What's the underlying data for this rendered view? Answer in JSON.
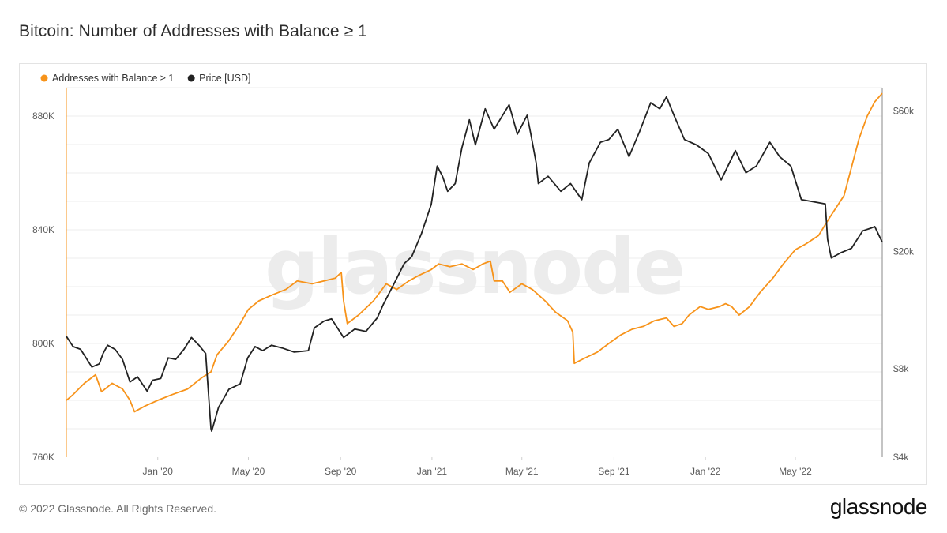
{
  "title": "Bitcoin: Number of Addresses with Balance ≥ 1",
  "footer": {
    "copyright": "© 2022 Glassnode. All Rights Reserved.",
    "logo": "glassnode"
  },
  "watermark": "glassnode",
  "colors": {
    "addresses": "#f7931a",
    "price": "#222222",
    "grid": "#ececec",
    "axis": "#cfcfcf"
  },
  "chart_data": {
    "type": "line",
    "legend_position": "top-left",
    "x_tick_labels": [
      "Jan '20",
      "May '20",
      "Sep '20",
      "Jan '21",
      "May '21",
      "Sep '21",
      "Jan '22",
      "May '22"
    ],
    "x_ticks": [
      "2020-01-01",
      "2020-05-01",
      "2020-09-01",
      "2021-01-01",
      "2021-05-01",
      "2021-09-01",
      "2022-01-01",
      "2022-05-01"
    ],
    "x_range": [
      "2019-09-01",
      "2022-08-25"
    ],
    "y_left": {
      "range": [
        760000,
        890000
      ],
      "ticks": [
        760000,
        800000,
        840000,
        880000
      ],
      "tick_labels": [
        "760K",
        "800K",
        "840K",
        "880K"
      ]
    },
    "y_right": {
      "scale": "log",
      "range": [
        4000,
        72000
      ],
      "ticks": [
        4000,
        8000,
        20000,
        60000
      ],
      "tick_labels": [
        "$4k",
        "$8k",
        "$20k",
        "$60k"
      ]
    },
    "grid": true,
    "series": [
      {
        "name": "Addresses with Balance ≥ 1",
        "axis": "left",
        "color": "#f7931a",
        "points": [
          [
            "2019-09-01",
            780000
          ],
          [
            "2019-09-10",
            782000
          ],
          [
            "2019-09-25",
            786000
          ],
          [
            "2019-10-10",
            789000
          ],
          [
            "2019-10-18",
            783000
          ],
          [
            "2019-11-01",
            786000
          ],
          [
            "2019-11-15",
            784000
          ],
          [
            "2019-11-25",
            780000
          ],
          [
            "2019-12-01",
            776000
          ],
          [
            "2019-12-15",
            778000
          ],
          [
            "2020-01-01",
            780000
          ],
          [
            "2020-01-20",
            782000
          ],
          [
            "2020-02-10",
            784000
          ],
          [
            "2020-02-29",
            788000
          ],
          [
            "2020-03-12",
            790000
          ],
          [
            "2020-03-20",
            796000
          ],
          [
            "2020-04-05",
            801000
          ],
          [
            "2020-04-20",
            807000
          ],
          [
            "2020-05-01",
            812000
          ],
          [
            "2020-05-15",
            815000
          ],
          [
            "2020-06-01",
            817000
          ],
          [
            "2020-06-20",
            819000
          ],
          [
            "2020-07-05",
            822000
          ],
          [
            "2020-07-25",
            821000
          ],
          [
            "2020-08-10",
            822000
          ],
          [
            "2020-08-25",
            823000
          ],
          [
            "2020-09-02",
            825000
          ],
          [
            "2020-09-05",
            815000
          ],
          [
            "2020-09-10",
            807000
          ],
          [
            "2020-09-25",
            810000
          ],
          [
            "2020-10-15",
            815000
          ],
          [
            "2020-11-01",
            821000
          ],
          [
            "2020-11-15",
            819000
          ],
          [
            "2020-12-01",
            822000
          ],
          [
            "2020-12-15",
            824000
          ],
          [
            "2020-12-31",
            826000
          ],
          [
            "2021-01-10",
            828000
          ],
          [
            "2021-01-25",
            827000
          ],
          [
            "2021-02-10",
            828000
          ],
          [
            "2021-02-25",
            826000
          ],
          [
            "2021-03-10",
            828000
          ],
          [
            "2021-03-20",
            829000
          ],
          [
            "2021-03-25",
            822000
          ],
          [
            "2021-04-05",
            822000
          ],
          [
            "2021-04-15",
            818000
          ],
          [
            "2021-05-01",
            821000
          ],
          [
            "2021-05-15",
            819000
          ],
          [
            "2021-06-01",
            815000
          ],
          [
            "2021-06-15",
            811000
          ],
          [
            "2021-07-01",
            808000
          ],
          [
            "2021-07-08",
            804000
          ],
          [
            "2021-07-10",
            793000
          ],
          [
            "2021-07-25",
            795000
          ],
          [
            "2021-08-10",
            797000
          ],
          [
            "2021-08-25",
            800000
          ],
          [
            "2021-09-10",
            803000
          ],
          [
            "2021-09-25",
            805000
          ],
          [
            "2021-10-10",
            806000
          ],
          [
            "2021-10-25",
            808000
          ],
          [
            "2021-11-10",
            809000
          ],
          [
            "2021-11-20",
            806000
          ],
          [
            "2021-12-01",
            807000
          ],
          [
            "2021-12-10",
            810000
          ],
          [
            "2021-12-25",
            813000
          ],
          [
            "2022-01-05",
            812000
          ],
          [
            "2022-01-20",
            813000
          ],
          [
            "2022-01-28",
            814000
          ],
          [
            "2022-02-05",
            813000
          ],
          [
            "2022-02-15",
            810000
          ],
          [
            "2022-03-01",
            813000
          ],
          [
            "2022-03-15",
            818000
          ],
          [
            "2022-04-01",
            823000
          ],
          [
            "2022-04-15",
            828000
          ],
          [
            "2022-05-01",
            833000
          ],
          [
            "2022-05-15",
            835000
          ],
          [
            "2022-06-01",
            838000
          ],
          [
            "2022-06-15",
            844000
          ],
          [
            "2022-06-25",
            848000
          ],
          [
            "2022-07-05",
            852000
          ],
          [
            "2022-07-15",
            862000
          ],
          [
            "2022-07-25",
            872000
          ],
          [
            "2022-08-05",
            880000
          ],
          [
            "2022-08-15",
            885000
          ],
          [
            "2022-08-25",
            888000
          ]
        ]
      },
      {
        "name": "Price [USD]",
        "axis": "right",
        "color": "#222222",
        "points": [
          [
            "2019-09-01",
            10300
          ],
          [
            "2019-09-10",
            9500
          ],
          [
            "2019-09-20",
            9300
          ],
          [
            "2019-10-05",
            8100
          ],
          [
            "2019-10-15",
            8300
          ],
          [
            "2019-10-20",
            9000
          ],
          [
            "2019-10-26",
            9600
          ],
          [
            "2019-11-05",
            9300
          ],
          [
            "2019-11-15",
            8600
          ],
          [
            "2019-11-25",
            7200
          ],
          [
            "2019-12-05",
            7500
          ],
          [
            "2019-12-18",
            6700
          ],
          [
            "2019-12-25",
            7300
          ],
          [
            "2020-01-05",
            7400
          ],
          [
            "2020-01-15",
            8700
          ],
          [
            "2020-01-25",
            8600
          ],
          [
            "2020-02-05",
            9300
          ],
          [
            "2020-02-15",
            10200
          ],
          [
            "2020-02-25",
            9600
          ],
          [
            "2020-03-05",
            9000
          ],
          [
            "2020-03-12",
            5000
          ],
          [
            "2020-03-13",
            4900
          ],
          [
            "2020-03-22",
            5900
          ],
          [
            "2020-04-05",
            6800
          ],
          [
            "2020-04-20",
            7100
          ],
          [
            "2020-04-30",
            8700
          ],
          [
            "2020-05-10",
            9500
          ],
          [
            "2020-05-20",
            9200
          ],
          [
            "2020-06-01",
            9600
          ],
          [
            "2020-06-15",
            9400
          ],
          [
            "2020-07-01",
            9100
          ],
          [
            "2020-07-20",
            9200
          ],
          [
            "2020-07-28",
            11000
          ],
          [
            "2020-08-10",
            11600
          ],
          [
            "2020-08-20",
            11800
          ],
          [
            "2020-09-05",
            10200
          ],
          [
            "2020-09-20",
            10900
          ],
          [
            "2020-10-05",
            10700
          ],
          [
            "2020-10-20",
            11900
          ],
          [
            "2020-10-28",
            13200
          ],
          [
            "2020-11-10",
            15300
          ],
          [
            "2020-11-25",
            18200
          ],
          [
            "2020-12-05",
            19200
          ],
          [
            "2020-12-18",
            23000
          ],
          [
            "2020-12-31",
            28900
          ],
          [
            "2021-01-08",
            39000
          ],
          [
            "2021-01-15",
            36000
          ],
          [
            "2021-01-22",
            32000
          ],
          [
            "2021-02-01",
            34000
          ],
          [
            "2021-02-10",
            45000
          ],
          [
            "2021-02-20",
            56000
          ],
          [
            "2021-02-28",
            46000
          ],
          [
            "2021-03-13",
            61000
          ],
          [
            "2021-03-25",
            52000
          ],
          [
            "2021-04-14",
            63000
          ],
          [
            "2021-04-25",
            50000
          ],
          [
            "2021-05-08",
            58000
          ],
          [
            "2021-05-13",
            50000
          ],
          [
            "2021-05-20",
            40000
          ],
          [
            "2021-05-23",
            34000
          ],
          [
            "2021-06-05",
            36000
          ],
          [
            "2021-06-22",
            32000
          ],
          [
            "2021-07-05",
            34000
          ],
          [
            "2021-07-20",
            30000
          ],
          [
            "2021-07-30",
            40000
          ],
          [
            "2021-08-14",
            47000
          ],
          [
            "2021-08-25",
            48000
          ],
          [
            "2021-09-06",
            52000
          ],
          [
            "2021-09-21",
            42000
          ],
          [
            "2021-10-05",
            51000
          ],
          [
            "2021-10-20",
            64000
          ],
          [
            "2021-11-01",
            61000
          ],
          [
            "2021-11-10",
            67000
          ],
          [
            "2021-11-20",
            58000
          ],
          [
            "2021-12-04",
            48000
          ],
          [
            "2021-12-20",
            46000
          ],
          [
            "2022-01-05",
            43000
          ],
          [
            "2022-01-22",
            35000
          ],
          [
            "2022-02-10",
            44000
          ],
          [
            "2022-02-24",
            37000
          ],
          [
            "2022-03-10",
            39000
          ],
          [
            "2022-03-28",
            47000
          ],
          [
            "2022-04-10",
            42000
          ],
          [
            "2022-04-25",
            39000
          ],
          [
            "2022-05-09",
            30000
          ],
          [
            "2022-05-25",
            29500
          ],
          [
            "2022-06-10",
            29000
          ],
          [
            "2022-06-13",
            22000
          ],
          [
            "2022-06-18",
            19000
          ],
          [
            "2022-07-01",
            19800
          ],
          [
            "2022-07-15",
            20500
          ],
          [
            "2022-07-30",
            23500
          ],
          [
            "2022-08-10",
            24000
          ],
          [
            "2022-08-15",
            24300
          ],
          [
            "2022-08-25",
            21500
          ]
        ]
      }
    ]
  }
}
